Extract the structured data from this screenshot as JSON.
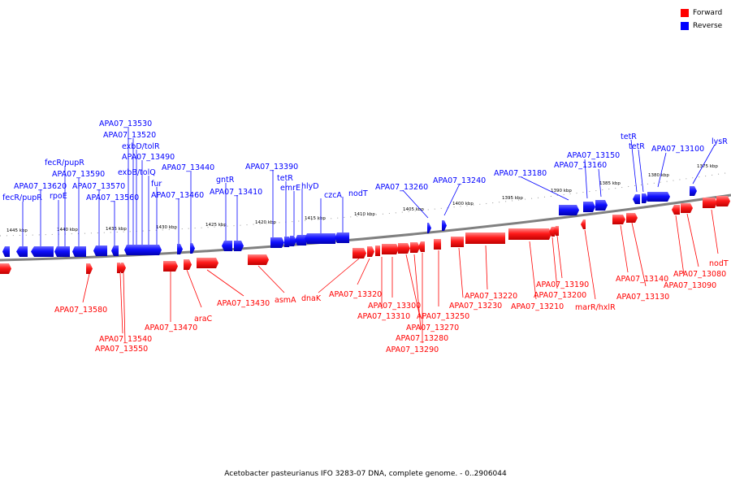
{
  "colors": {
    "forward": "#ff0000",
    "reverse": "#0000ff",
    "backbone": "#808080",
    "tick": "#000000"
  },
  "legend": {
    "forward_label": "Forward",
    "reverse_label": "Reverse"
  },
  "caption": "Acetobacter pasteurianus IFO 3283-07 DNA, complete genome. - 0..2906044",
  "scale_labels": [
    {
      "text": "1445 kbp"
    },
    {
      "text": "1440 kbp"
    },
    {
      "text": "1435 kbp"
    },
    {
      "text": "1430 kbp"
    },
    {
      "text": "1425 kbp"
    },
    {
      "text": "1420 kbp"
    },
    {
      "text": "1415 kbp"
    },
    {
      "text": "1410 kbp"
    },
    {
      "text": "1405 kbp"
    },
    {
      "text": "1400 kbp"
    },
    {
      "text": "1395 kbp"
    },
    {
      "text": "1390 kbp"
    },
    {
      "text": "1385 kbp"
    },
    {
      "text": "1380 kbp"
    },
    {
      "text": "1375 kbp"
    }
  ],
  "reverse_genes": [
    "fecR/pupR",
    "APA07_13620",
    "rpoE",
    "fecR/pupR",
    "APA07_13590",
    "APA07_13570",
    "APA07_13560",
    "APA07_13530",
    "APA07_13520",
    "exbD/tolR",
    "APA07_13490",
    "exbB/tolQ",
    "fur",
    "APA07_13460",
    "APA07_13440",
    "gntR",
    "APA07_13410",
    "APA07_13390",
    "tetR",
    "emrE",
    "hlyD",
    "czcA",
    "nodT",
    "APA07_13260",
    "APA07_13240",
    "APA07_13180",
    "APA07_13150",
    "APA07_13160",
    "tetR",
    "tetR",
    "APA07_13100",
    "lysR"
  ],
  "forward_genes": [
    "APA07_13580",
    "APA07_13540",
    "APA07_13550",
    "APA07_13470",
    "araC",
    "APA07_13430",
    "asmA",
    "dnaK",
    "APA07_13320",
    "APA07_13300",
    "APA07_13310",
    "APA07_13270",
    "APA07_13250",
    "APA07_13280",
    "APA07_13290",
    "APA07_13230",
    "APA07_13220",
    "APA07_13210",
    "APA07_13200",
    "APA07_13190",
    "marR/hxlR",
    "APA07_13140",
    "APA07_13130",
    "APA07_13090",
    "APA07_13080",
    "nodT"
  ]
}
